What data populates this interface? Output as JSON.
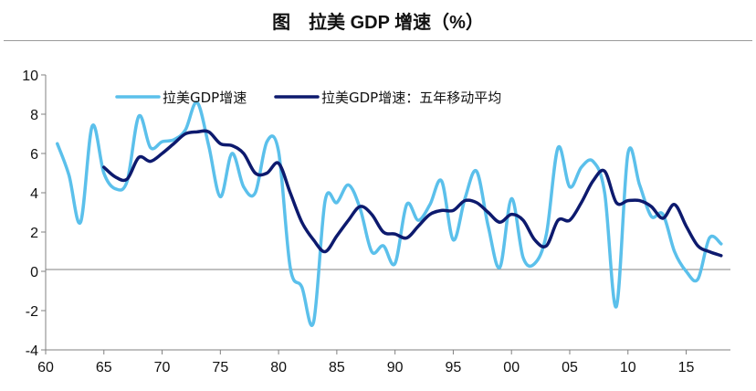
{
  "chart_data": {
    "type": "line",
    "title": "图　拉美 GDP 增速（%）",
    "x_tick_labels": [
      "60",
      "65",
      "70",
      "75",
      "80",
      "85",
      "90",
      "95",
      "00",
      "05",
      "10",
      "15"
    ],
    "ylim": [
      -4,
      10
    ],
    "y_ticks": [
      -4,
      -2,
      0,
      2,
      4,
      6,
      8,
      10
    ],
    "xlim": [
      1960,
      2018.8
    ],
    "grid": false,
    "legend_position": "top",
    "series": [
      {
        "name": "拉美GDP增速",
        "color": "#5bc0eb",
        "x": [
          1961,
          1962,
          1963,
          1964,
          1965,
          1966,
          1967,
          1968,
          1969,
          1970,
          1971,
          1972,
          1973,
          1974,
          1975,
          1976,
          1977,
          1978,
          1979,
          1980,
          1981,
          1982,
          1983,
          1984,
          1985,
          1986,
          1987,
          1988,
          1989,
          1990,
          1991,
          1992,
          1993,
          1994,
          1995,
          1996,
          1997,
          1998,
          1999,
          2000,
          2001,
          2002,
          2003,
          2004,
          2005,
          2006,
          2007,
          2008,
          2009,
          2010,
          2011,
          2012,
          2013,
          2014,
          2015,
          2016,
          2017,
          2018
        ],
        "values": [
          6.5,
          4.9,
          2.5,
          7.4,
          5.0,
          4.2,
          4.6,
          7.9,
          6.3,
          6.6,
          6.7,
          7.2,
          8.6,
          6.4,
          3.8,
          6.0,
          4.3,
          4.0,
          6.6,
          6.1,
          0.2,
          -0.8,
          -2.6,
          3.6,
          3.5,
          4.4,
          3.2,
          1.0,
          1.3,
          0.4,
          3.4,
          2.6,
          3.4,
          4.6,
          1.6,
          3.7,
          5.1,
          2.3,
          0.2,
          3.7,
          0.7,
          0.4,
          1.9,
          6.3,
          4.3,
          5.3,
          5.6,
          4.0,
          -1.8,
          6.0,
          4.4,
          2.8,
          2.9,
          1.0,
          0.0,
          -0.4,
          1.7,
          1.4
        ]
      },
      {
        "name": "拉美GDP增速：五年移动平均",
        "color": "#0d1a6e",
        "x": [
          1965,
          1966,
          1967,
          1968,
          1969,
          1970,
          1971,
          1972,
          1973,
          1974,
          1975,
          1976,
          1977,
          1978,
          1979,
          1980,
          1981,
          1982,
          1983,
          1984,
          1985,
          1986,
          1987,
          1988,
          1989,
          1990,
          1991,
          1992,
          1993,
          1994,
          1995,
          1996,
          1997,
          1998,
          1999,
          2000,
          2001,
          2002,
          2003,
          2004,
          2005,
          2006,
          2007,
          2008,
          2009,
          2010,
          2011,
          2012,
          2013,
          2014,
          2015,
          2016,
          2017,
          2018
        ],
        "values": [
          5.3,
          4.8,
          4.7,
          5.8,
          5.6,
          6.0,
          6.5,
          7.0,
          7.1,
          7.1,
          6.5,
          6.4,
          6.0,
          5.0,
          5.0,
          5.5,
          4.0,
          2.5,
          1.6,
          1.0,
          1.8,
          2.6,
          3.3,
          2.9,
          2.0,
          1.9,
          1.7,
          2.3,
          2.9,
          3.1,
          3.1,
          3.6,
          3.5,
          3.0,
          2.5,
          2.9,
          2.6,
          1.6,
          1.3,
          2.6,
          2.6,
          3.5,
          4.6,
          5.1,
          3.5,
          3.6,
          3.6,
          3.3,
          2.7,
          3.4,
          2.3,
          1.3,
          1.0,
          0.8
        ]
      }
    ]
  }
}
